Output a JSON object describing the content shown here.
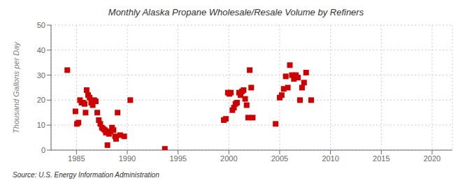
{
  "chart_data": {
    "type": "scatter",
    "title": "Monthly Alaska Propane Wholesale/Resale Volume by Refiners",
    "y_label": "Thousand Gallons per Day",
    "annotations": [
      "Source: U.S. Energy Information Administration"
    ],
    "color": "#cc0000",
    "marker": "square",
    "grid": true,
    "xlim": [
      1982.5,
      2022
    ],
    "ylim": [
      0,
      50
    ],
    "xticks": [
      1985,
      1990,
      1995,
      2000,
      2005,
      2010,
      2015,
      2020
    ],
    "yticks": [
      0,
      10,
      20,
      30,
      40,
      50
    ],
    "x": [
      1984.1,
      1984.9,
      1985.05,
      1985.2,
      1985.35,
      1985.5,
      1985.65,
      1985.8,
      1985.9,
      1986.0,
      1986.15,
      1986.3,
      1986.45,
      1986.6,
      1986.75,
      1986.9,
      1987.05,
      1987.2,
      1987.35,
      1987.5,
      1987.65,
      1987.8,
      1987.9,
      1988.05,
      1988.2,
      1988.35,
      1988.5,
      1988.65,
      1988.8,
      1988.9,
      1989.05,
      1989.3,
      1989.7,
      1990.3,
      1993.7,
      1999.5,
      1999.7,
      1999.9,
      2000.05,
      2000.2,
      2000.35,
      2000.5,
      2000.65,
      2000.8,
      2001.0,
      2001.15,
      2001.3,
      2001.45,
      2001.6,
      2001.75,
      2001.9,
      2002.05,
      2002.2,
      2002.35,
      2004.6,
      2005.0,
      2005.2,
      2005.4,
      2005.6,
      2005.8,
      2006.0,
      2006.2,
      2006.4,
      2006.6,
      2006.8,
      2007.0,
      2007.2,
      2007.4,
      2007.6,
      2008.1
    ],
    "values": [
      32.0,
      15.5,
      10.5,
      11.0,
      20.0,
      19.0,
      19.0,
      18.5,
      15.0,
      24.0,
      22.0,
      21.0,
      19.0,
      18.0,
      20.0,
      19.5,
      15.0,
      12.0,
      10.5,
      9.0,
      8.5,
      8.0,
      7.0,
      2.0,
      6.5,
      7.5,
      9.0,
      8.0,
      5.5,
      4.5,
      15.0,
      6.0,
      5.5,
      20.0,
      0.5,
      12.0,
      12.5,
      23.0,
      22.5,
      23.0,
      16.0,
      17.0,
      18.5,
      19.0,
      23.0,
      22.0,
      23.5,
      24.0,
      20.5,
      18.0,
      13.0,
      32.0,
      25.0,
      13.0,
      10.5,
      21.0,
      22.0,
      24.5,
      29.5,
      25.0,
      34.0,
      30.0,
      28.5,
      30.0,
      29.0,
      20.0,
      25.0,
      27.0,
      31.0,
      20.0
    ]
  }
}
